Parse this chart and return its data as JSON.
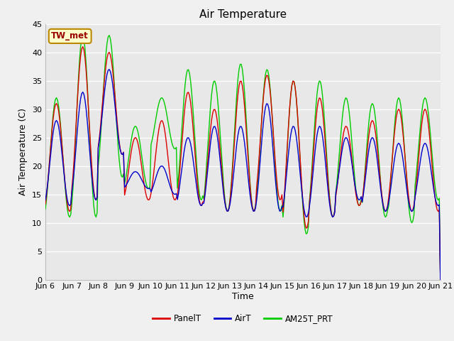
{
  "title": "Air Temperature",
  "xlabel": "Time",
  "ylabel": "Air Temperature (C)",
  "station_label": "TW_met",
  "ylim": [
    0,
    45
  ],
  "yticks": [
    0,
    5,
    10,
    15,
    20,
    25,
    30,
    35,
    40,
    45
  ],
  "legend": [
    {
      "label": "PanelT",
      "color": "#dd0000"
    },
    {
      "label": "AirT",
      "color": "#0000cc"
    },
    {
      "label": "AM25T_PRT",
      "color": "#00cc00"
    }
  ],
  "background_color": "#f0f0f0",
  "plot_bg_color": "#e8e8e8",
  "grid_color": "#ffffff",
  "title_fontsize": 11,
  "axis_label_fontsize": 9,
  "tick_label_fontsize": 8,
  "panel_mins": [
    12,
    14,
    22,
    14,
    14,
    13,
    12,
    12,
    14,
    9,
    11,
    13,
    12,
    12,
    12
  ],
  "panel_maxs": [
    31,
    41,
    40,
    25,
    28,
    33,
    30,
    35,
    36,
    35,
    32,
    27,
    28,
    30,
    30
  ],
  "air_mins": [
    13,
    14,
    22,
    16,
    15,
    13,
    12,
    12,
    12,
    11,
    11,
    14,
    12,
    12,
    13
  ],
  "air_maxs": [
    28,
    33,
    37,
    19,
    20,
    25,
    27,
    27,
    31,
    27,
    27,
    25,
    25,
    24,
    24
  ],
  "am25_mins": [
    11,
    11,
    18,
    16,
    23,
    14,
    12,
    12,
    12,
    8,
    11,
    13,
    11,
    10,
    14
  ],
  "am25_maxs": [
    32,
    43,
    43,
    27,
    32,
    37,
    35,
    38,
    37,
    35,
    35,
    32,
    31,
    32,
    32
  ]
}
